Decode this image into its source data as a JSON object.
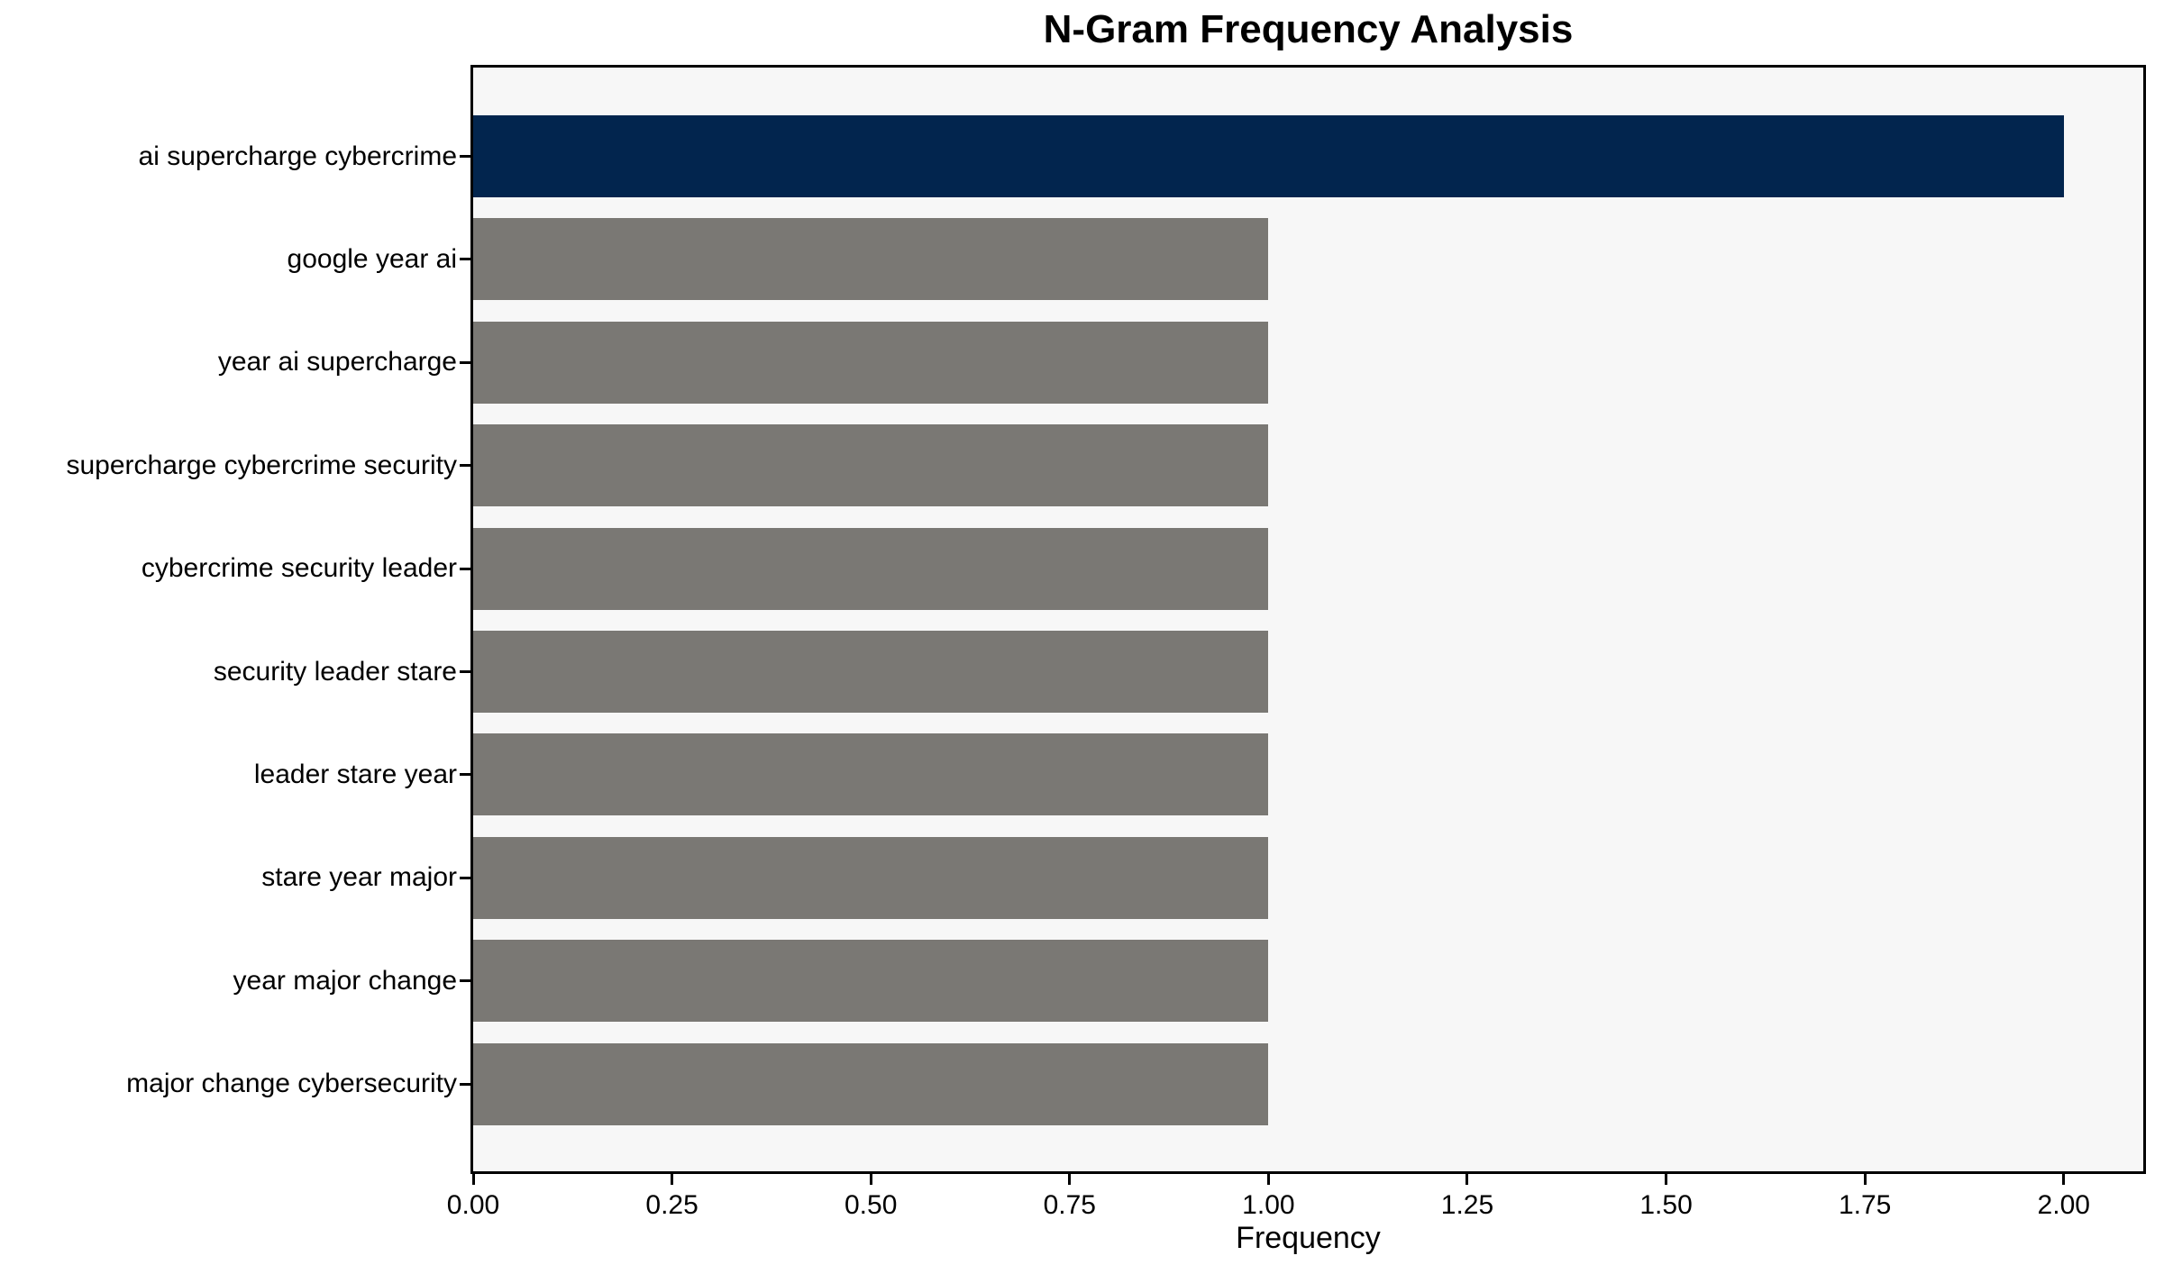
{
  "chart_data": {
    "type": "bar",
    "orientation": "horizontal",
    "title": "N-Gram Frequency Analysis",
    "xlabel": "Frequency",
    "ylabel": "",
    "categories": [
      "ai supercharge cybercrime",
      "google year ai",
      "year ai supercharge",
      "supercharge cybercrime security",
      "cybercrime security leader",
      "security leader stare",
      "leader stare year",
      "stare year major",
      "year major change",
      "major change cybersecurity"
    ],
    "values": [
      2,
      1,
      1,
      1,
      1,
      1,
      1,
      1,
      1,
      1
    ],
    "bar_colors": [
      "#02254e",
      "#7a7874",
      "#7a7874",
      "#7a7874",
      "#7a7874",
      "#7a7874",
      "#7a7874",
      "#7a7874",
      "#7a7874",
      "#7a7874"
    ],
    "xlim": [
      0,
      2.1
    ],
    "xticks": [
      0,
      0.25,
      0.5,
      0.75,
      1.0,
      1.25,
      1.5,
      1.75,
      2.0
    ],
    "xtick_labels": [
      "0.00",
      "0.25",
      "0.50",
      "0.75",
      "1.00",
      "1.25",
      "1.50",
      "1.75",
      "2.00"
    ],
    "grid": false,
    "legend": null,
    "colors": {
      "plot_background": "#f7f7f7",
      "figure_background": "#ffffff",
      "spine": "#000000",
      "text": "#000000",
      "highlight_bar": "#02254e",
      "default_bar": "#7a7874"
    }
  }
}
